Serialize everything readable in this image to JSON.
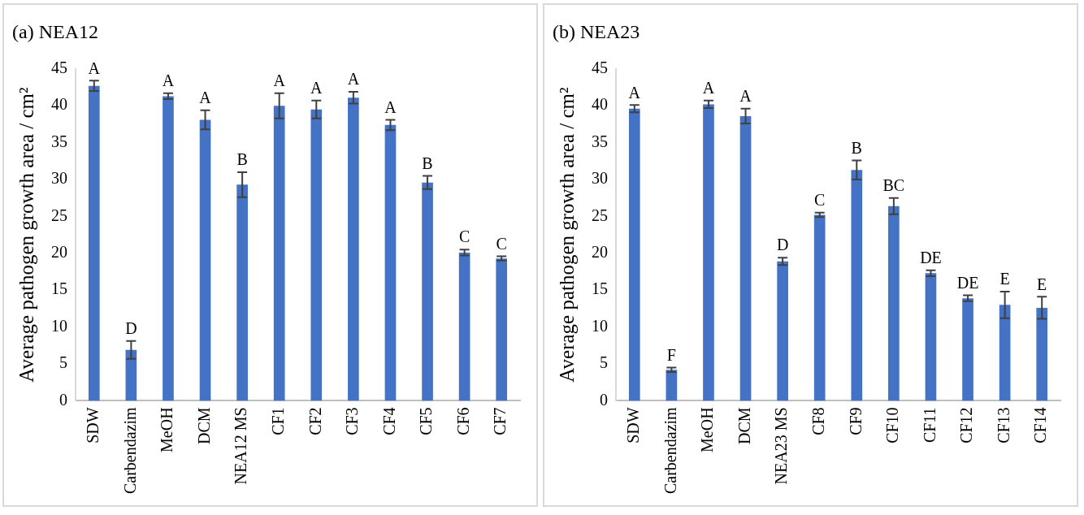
{
  "chart_data": [
    {
      "type": "bar",
      "title": "(a) NEA12",
      "ylabel": "Average pathogen growth area / cm²",
      "categories": [
        "SDW",
        "Carbendazim",
        "MeOH",
        "DCM",
        "NEA12 MS",
        "CF1",
        "CF2",
        "CF3",
        "CF4",
        "CF5",
        "CF6",
        "CF7"
      ],
      "series": [
        {
          "color": "#4472c4",
          "values": [
            42.7,
            6.9,
            41.3,
            38.1,
            29.3,
            40.0,
            39.5,
            41.1,
            37.4,
            29.6,
            20.1,
            19.3
          ],
          "errors": [
            0.7,
            1.2,
            0.4,
            1.3,
            1.7,
            1.7,
            1.2,
            0.8,
            0.7,
            0.9,
            0.4,
            0.3
          ]
        }
      ],
      "ylim": [
        0,
        45
      ],
      "yticks": [
        0,
        5,
        10,
        15,
        20,
        25,
        30,
        35,
        40,
        45
      ],
      "grid": false,
      "legend": false,
      "annotations": [
        {
          "text": "A",
          "x": "SDW",
          "y": 43.4
        },
        {
          "text": "D",
          "x": "Carbendazim",
          "y": 8.1
        },
        {
          "text": "A",
          "x": "MeOH",
          "y": 41.7
        },
        {
          "text": "A",
          "x": "DCM",
          "y": 39.4
        },
        {
          "text": "B",
          "x": "NEA12 MS",
          "y": 31.0
        },
        {
          "text": "A",
          "x": "CF1",
          "y": 41.7
        },
        {
          "text": "A",
          "x": "CF2",
          "y": 40.7
        },
        {
          "text": "A",
          "x": "CF3",
          "y": 41.9
        },
        {
          "text": "A",
          "x": "CF4",
          "y": 38.1
        },
        {
          "text": "B",
          "x": "CF5",
          "y": 30.5
        },
        {
          "text": "C",
          "x": "CF6",
          "y": 20.5
        },
        {
          "text": "C",
          "x": "CF7",
          "y": 19.6
        }
      ]
    },
    {
      "type": "bar",
      "title": "(b) NEA23",
      "ylabel": "Average pathogen growth area / cm²",
      "categories": [
        "SDW",
        "Carbendazim",
        "MeOH",
        "DCM",
        "NEA23 MS",
        "CF8",
        "CF9",
        "CF10",
        "CF11",
        "CF12",
        "CF13",
        "CF14"
      ],
      "series": [
        {
          "color": "#4472c4",
          "values": [
            39.6,
            4.2,
            40.2,
            38.6,
            18.9,
            25.2,
            31.3,
            26.4,
            17.3,
            13.9,
            13.0,
            12.6
          ],
          "errors": [
            0.5,
            0.3,
            0.5,
            1.0,
            0.5,
            0.3,
            1.3,
            1.1,
            0.4,
            0.4,
            1.8,
            1.5
          ]
        }
      ],
      "ylim": [
        0,
        45
      ],
      "yticks": [
        0,
        5,
        10,
        15,
        20,
        25,
        30,
        35,
        40,
        45
      ],
      "grid": false,
      "legend": false,
      "annotations": [
        {
          "text": "A",
          "x": "SDW",
          "y": 40.1
        },
        {
          "text": "F",
          "x": "Carbendazim",
          "y": 4.5
        },
        {
          "text": "A",
          "x": "MeOH",
          "y": 40.7
        },
        {
          "text": "A",
          "x": "DCM",
          "y": 39.6
        },
        {
          "text": "D",
          "x": "NEA23 MS",
          "y": 19.4
        },
        {
          "text": "C",
          "x": "CF8",
          "y": 25.5
        },
        {
          "text": "B",
          "x": "CF9",
          "y": 32.6
        },
        {
          "text": "BC",
          "x": "CF10",
          "y": 27.5
        },
        {
          "text": "DE",
          "x": "CF11",
          "y": 17.7
        },
        {
          "text": "DE",
          "x": "CF12",
          "y": 14.3
        },
        {
          "text": "E",
          "x": "CF13",
          "y": 14.8
        },
        {
          "text": "E",
          "x": "CF14",
          "y": 14.1
        }
      ]
    }
  ]
}
